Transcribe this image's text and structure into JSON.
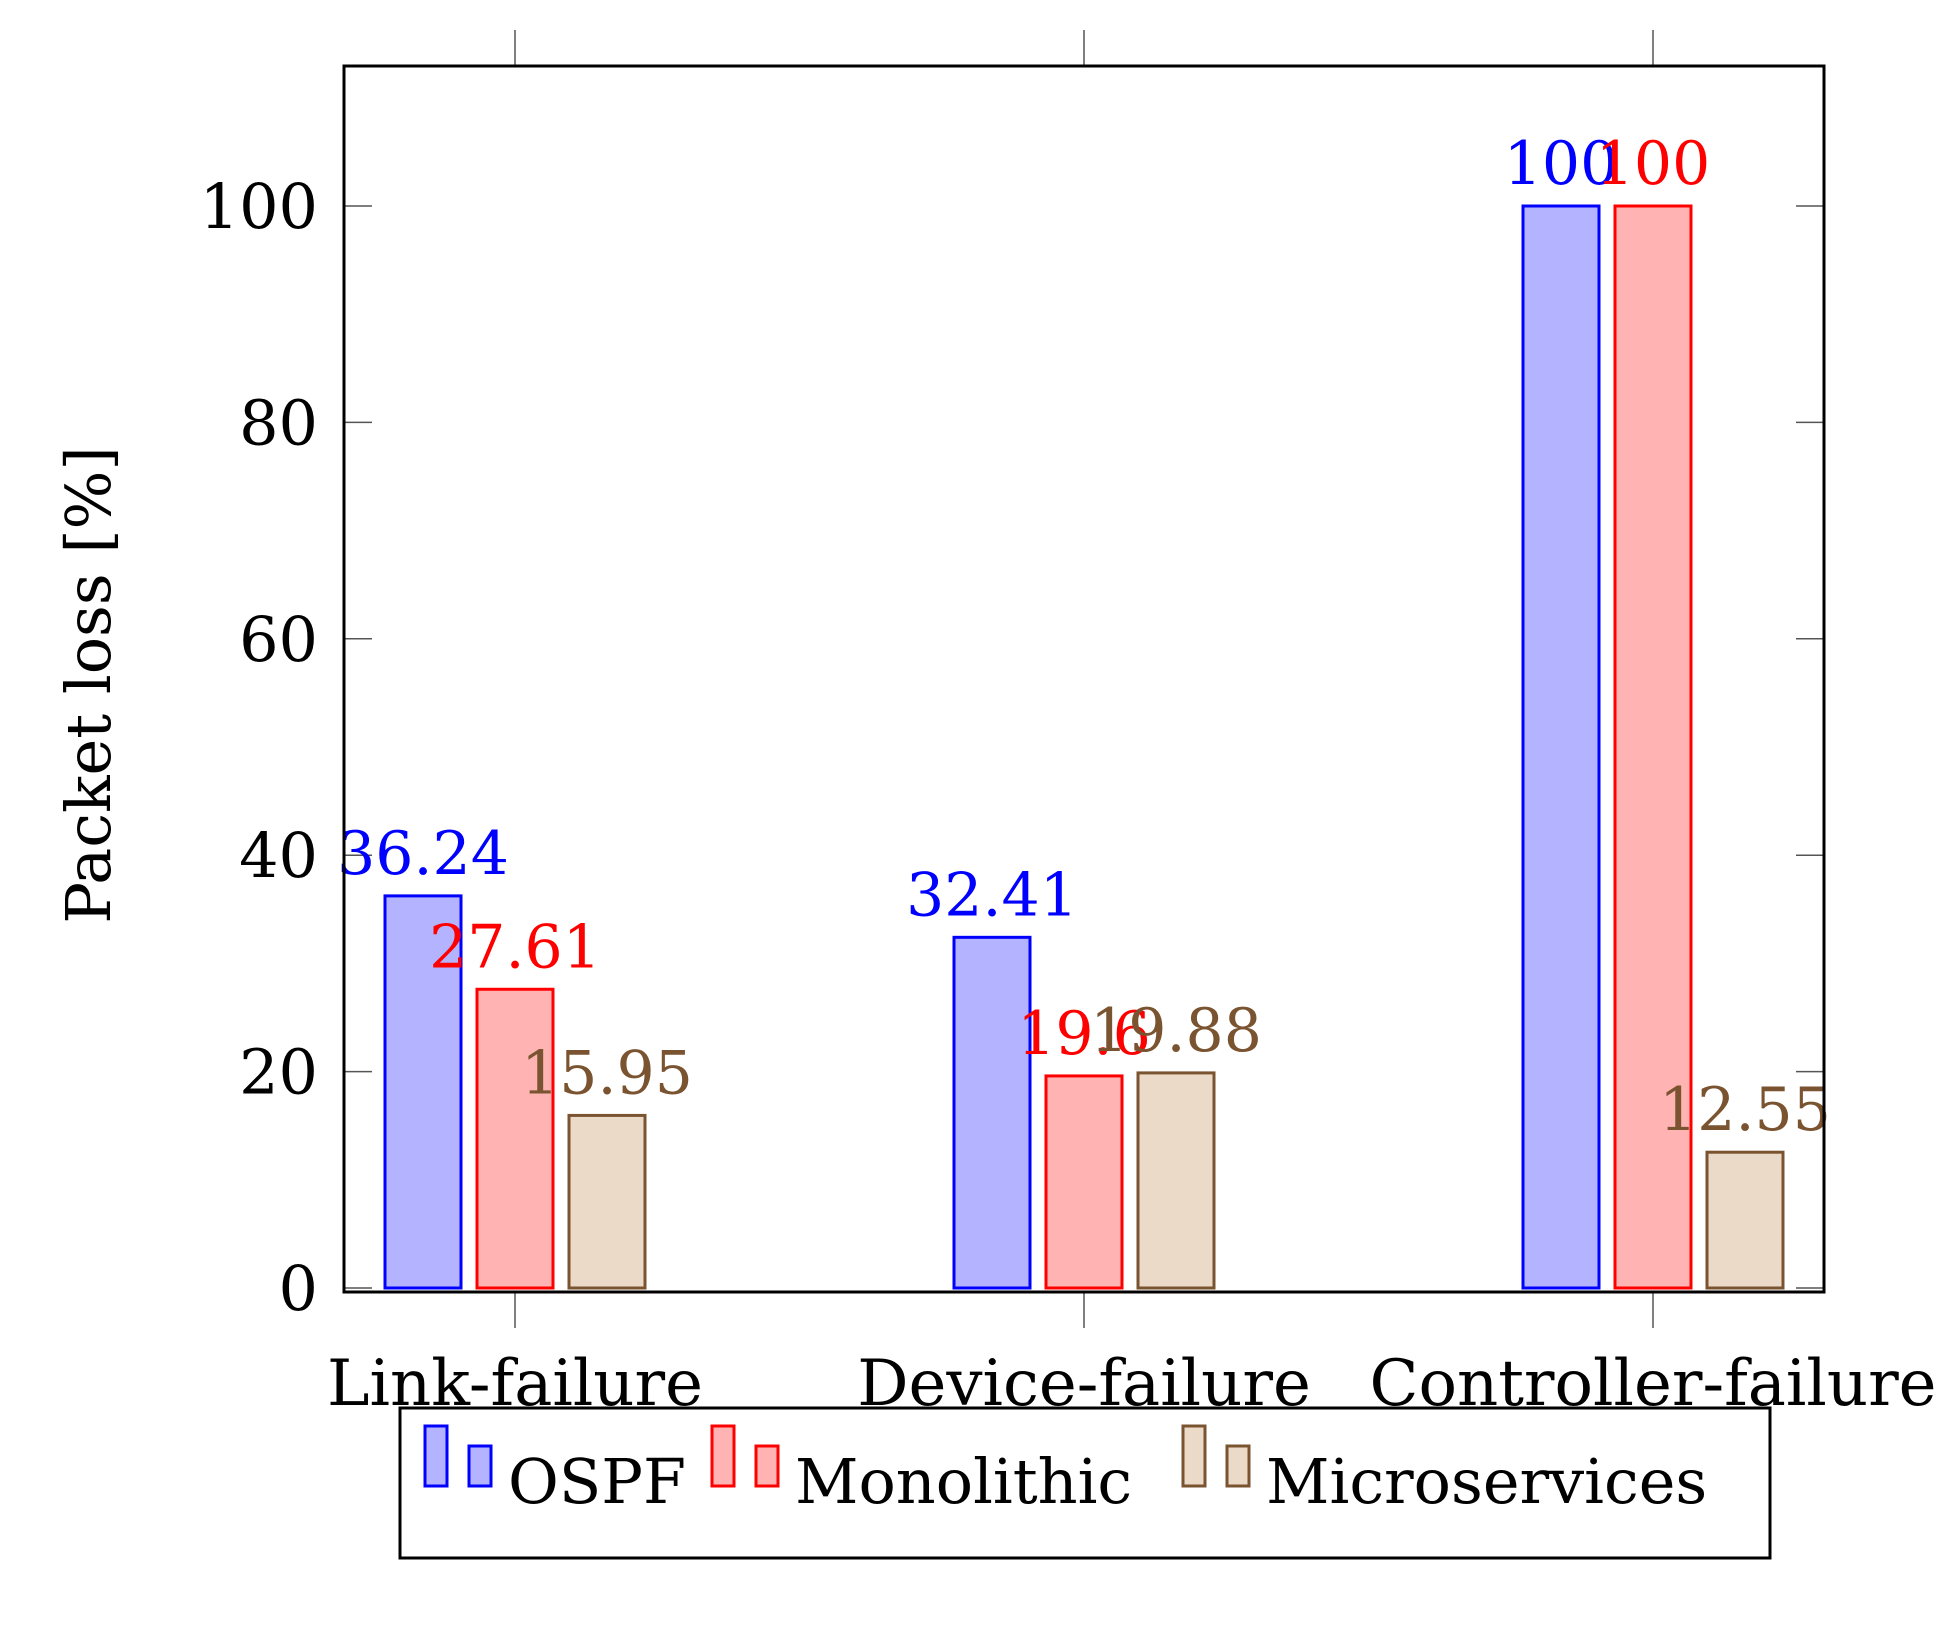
{
  "chart_data": {
    "type": "bar",
    "title": "",
    "xlabel": "",
    "ylabel": "Packet loss [%]",
    "categories": [
      "Link-failure",
      "Device-failure",
      "Controller-failure"
    ],
    "series": [
      {
        "name": "OSPF",
        "values": [
          36.24,
          32.41,
          100
        ],
        "value_labels": [
          "36.24",
          "32.41",
          "100"
        ],
        "stroke": "#0000ff",
        "fill": "#b3b3ff"
      },
      {
        "name": "Monolithic",
        "values": [
          27.61,
          19.6,
          100
        ],
        "value_labels": [
          "27.61",
          "19.6",
          "100"
        ],
        "stroke": "#ff0000",
        "fill": "#ffb3b3"
      },
      {
        "name": "Microservices",
        "values": [
          15.95,
          19.88,
          12.55
        ],
        "value_labels": [
          "15.95",
          "19.88",
          "12.55"
        ],
        "stroke": "#7a5330",
        "fill": "#ecdac8"
      }
    ],
    "ylim": [
      0,
      113
    ],
    "yticks": [
      0,
      20,
      40,
      60,
      80,
      100
    ],
    "grid": false,
    "legend_position": "bottom-center"
  }
}
